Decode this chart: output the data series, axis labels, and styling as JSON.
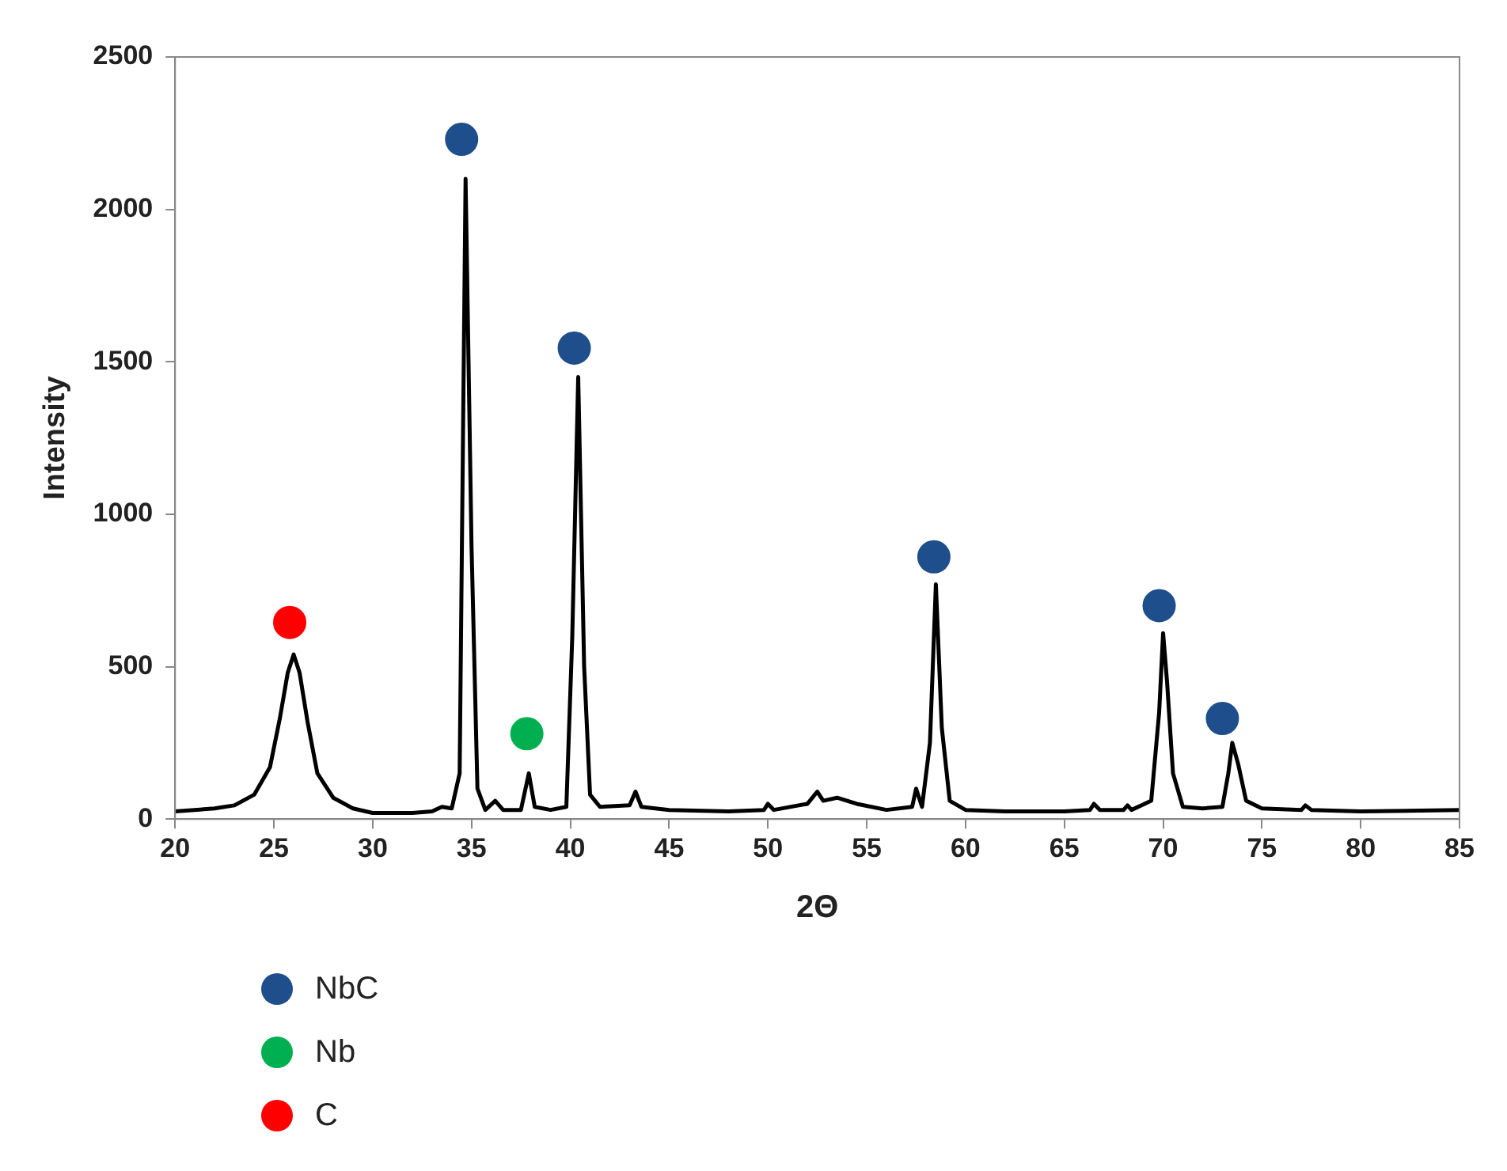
{
  "chart_data": {
    "type": "line",
    "xlabel": "2Θ",
    "ylabel": "Intensity",
    "xlim": [
      20,
      85
    ],
    "xticks": [
      20,
      25,
      30,
      35,
      40,
      45,
      50,
      55,
      60,
      65,
      70,
      75,
      80,
      85
    ],
    "ylim": [
      0,
      2500
    ],
    "yticks": [
      0,
      500,
      1000,
      1500,
      2000,
      2500
    ],
    "grid": false,
    "legend": "bottom left",
    "series": [
      {
        "type": "line",
        "color": "#000000",
        "marker": "none",
        "line_style": "solid",
        "x": [
          20,
          22,
          23,
          24,
          24.8,
          25.3,
          25.7,
          26,
          26.3,
          26.7,
          27.2,
          28,
          29,
          30,
          32,
          33,
          33.5,
          34,
          34.4,
          34.7,
          35,
          35.3,
          35.7,
          36.2,
          36.6,
          37.5,
          37.9,
          38.2,
          39,
          39.8,
          40.1,
          40.4,
          40.7,
          41,
          41.5,
          43,
          43.3,
          43.6,
          45,
          48,
          49.8,
          50,
          50.3,
          52,
          52.5,
          52.8,
          53.5,
          54.5,
          56,
          57.3,
          57.5,
          57.8,
          58.2,
          58.5,
          58.8,
          59.2,
          60,
          62,
          65,
          66.3,
          66.5,
          66.8,
          68,
          68.2,
          68.4,
          69.4,
          69.8,
          70,
          70.2,
          70.5,
          71,
          72,
          73,
          73.3,
          73.5,
          73.8,
          74.2,
          75,
          77,
          77.2,
          77.5,
          80,
          85
        ],
        "values": [
          25,
          35,
          45,
          80,
          170,
          330,
          480,
          540,
          480,
          320,
          150,
          70,
          35,
          20,
          20,
          25,
          40,
          35,
          150,
          2100,
          900,
          100,
          30,
          60,
          30,
          30,
          150,
          40,
          30,
          40,
          600,
          1450,
          500,
          80,
          40,
          45,
          90,
          40,
          30,
          25,
          30,
          50,
          30,
          50,
          90,
          60,
          70,
          50,
          30,
          40,
          100,
          40,
          250,
          770,
          300,
          60,
          30,
          25,
          25,
          30,
          50,
          30,
          30,
          45,
          30,
          60,
          350,
          610,
          450,
          150,
          40,
          35,
          40,
          150,
          250,
          180,
          60,
          35,
          30,
          45,
          30,
          25,
          30
        ]
      },
      {
        "type": "scatter",
        "name": "NbC",
        "color": "#1f4e8c",
        "marker": "circle",
        "x": [
          34.5,
          40.2,
          58.4,
          69.8,
          73
        ],
        "values": [
          2230,
          1545,
          860,
          700,
          330
        ]
      },
      {
        "type": "scatter",
        "name": "Nb",
        "color": "#00b050",
        "marker": "circle",
        "x": [
          37.8
        ],
        "values": [
          280
        ]
      },
      {
        "type": "scatter",
        "name": "C",
        "color": "#ff0000",
        "marker": "circle",
        "x": [
          25.8
        ],
        "values": [
          645
        ]
      }
    ]
  }
}
